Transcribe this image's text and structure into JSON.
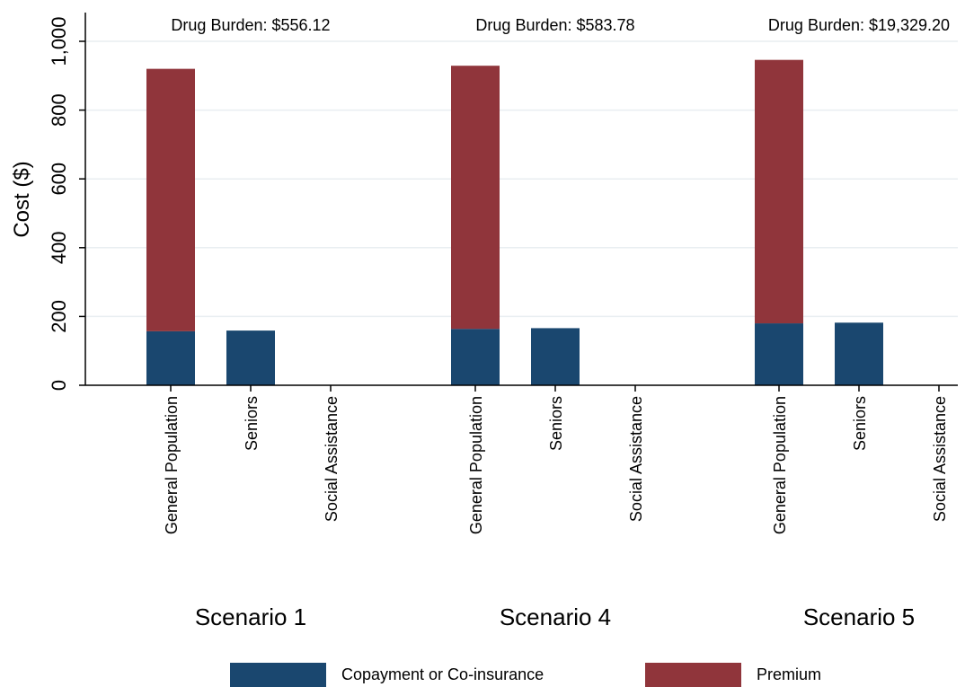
{
  "chart_data": {
    "type": "bar",
    "stacked": true,
    "ylabel": "Cost ($)",
    "ylim": [
      0,
      1000
    ],
    "yticks": [
      0,
      200,
      400,
      600,
      800,
      1000
    ],
    "ytick_labels": [
      "0",
      "200",
      "400",
      "600",
      "800",
      "1,000"
    ],
    "grid": true,
    "legend_position": "bottom",
    "categories": [
      "General Population",
      "Seniors",
      "Social Assistance"
    ],
    "groups": [
      {
        "label": "Scenario 1",
        "annotation": "Drug Burden: $556.12"
      },
      {
        "label": "Scenario 4",
        "annotation": "Drug Burden: $583.78"
      },
      {
        "label": "Scenario 5",
        "annotation": "Drug Burden: $19,329.20"
      }
    ],
    "series": [
      {
        "name": "Copayment or Co-insurance",
        "color": "#1a476f",
        "values": [
          [
            157,
            159,
            0
          ],
          [
            164,
            166,
            0
          ],
          [
            180,
            182,
            0
          ]
        ]
      },
      {
        "name": "Premium",
        "color": "#90353b",
        "values": [
          [
            763,
            0,
            0
          ],
          [
            765,
            0,
            0
          ],
          [
            766,
            0,
            0
          ]
        ]
      }
    ]
  }
}
